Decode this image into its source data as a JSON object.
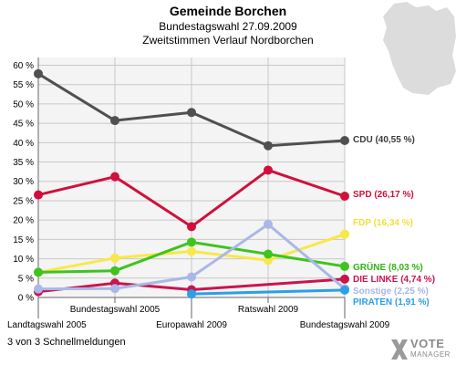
{
  "header": {
    "title": "Gemeinde Borchen",
    "subtitle": "Bundestagswahl 27.09.2009",
    "subtitle2": "Zweitstimmen Verlauf Nordborchen"
  },
  "footer": {
    "note": "3 von 3 Schnellmeldungen",
    "logo_top": "VOTE",
    "logo_bottom": "MANAGER"
  },
  "colors": {
    "background": "#ffffff",
    "plot_background": "#f4f4f4",
    "grid": "#c8c8c8",
    "map": "#dcdcdc"
  },
  "chart_data": {
    "type": "line",
    "categories": [
      "Landtagswahl 2005",
      "Bundestagswahl 2005",
      "Europawahl 2009",
      "Ratswahl 2009",
      "Bundestagswahl 2009"
    ],
    "ylim": [
      0,
      62
    ],
    "yticks": [
      0,
      5,
      10,
      15,
      20,
      25,
      30,
      35,
      40,
      45,
      50,
      55,
      60
    ],
    "ytick_labels": [
      "0 %",
      "5 %",
      "10 %",
      "15 %",
      "20 %",
      "25 %",
      "30 %",
      "35 %",
      "40 %",
      "45 %",
      "50 %",
      "55 %",
      "60 %"
    ],
    "grid": true,
    "series": [
      {
        "name": "CDU",
        "label": "CDU (40,55 %)",
        "color": "#505050",
        "label_color": "#3c3c3c",
        "values": [
          57.8,
          45.7,
          47.8,
          39.2,
          40.55
        ]
      },
      {
        "name": "SPD",
        "label": "SPD (26,17 %)",
        "color": "#d0103a",
        "label_color": "#d0103a",
        "values": [
          26.5,
          31.2,
          18.3,
          32.9,
          26.17
        ]
      },
      {
        "name": "FDP",
        "label": "FDP (16,34 %)",
        "color": "#f8e84a",
        "label_color": "#f2df3a",
        "values": [
          6.5,
          10.2,
          11.9,
          9.6,
          16.34
        ]
      },
      {
        "name": "GRÜNE",
        "label": "GRÜNE (8,03 %)",
        "color": "#3ec41e",
        "label_color": "#33b414",
        "values": [
          6.5,
          6.9,
          14.3,
          11.2,
          8.03
        ]
      },
      {
        "name": "DIE LINKE",
        "label": "DIE LINKE (4,74 %)",
        "color": "#c8154e",
        "label_color": "#c8154e",
        "values": [
          1.5,
          3.7,
          2.0,
          null,
          4.74
        ]
      },
      {
        "name": "Sonstige",
        "label": "Sonstige (2,25 %)",
        "color": "#aab8e8",
        "label_color": "#a8b6e4",
        "values": [
          2.2,
          2.3,
          5.3,
          18.9,
          2.25
        ]
      },
      {
        "name": "PIRATEN",
        "label": "PIRATEN (1,91 %)",
        "color": "#2aa0e8",
        "label_color": "#2a9ee6",
        "values": [
          null,
          null,
          0.9,
          null,
          1.91
        ]
      }
    ]
  }
}
